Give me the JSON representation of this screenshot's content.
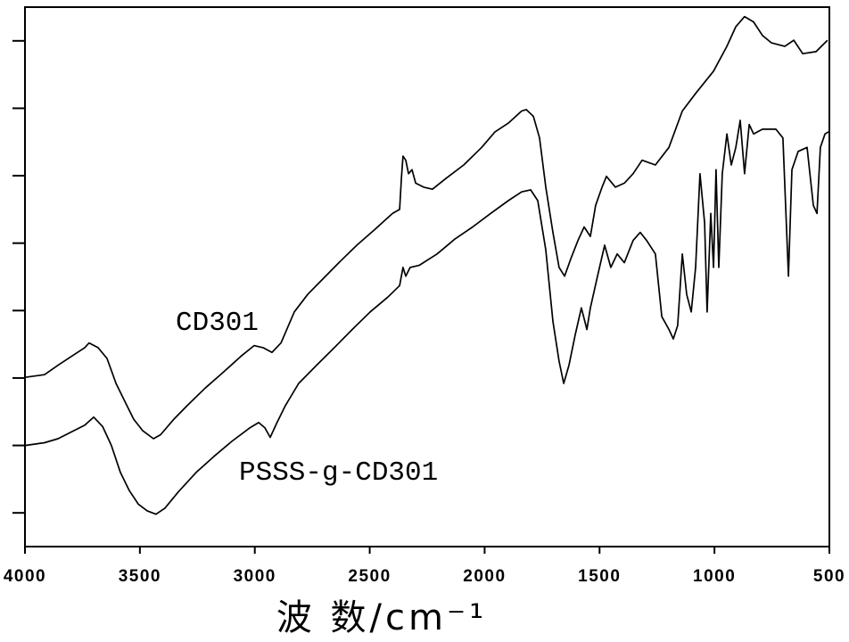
{
  "chart_data": {
    "type": "line",
    "title": "",
    "xlabel": "波 数/cm⁻¹",
    "ylabel": "",
    "xlim": [
      4000,
      500
    ],
    "ylim": [
      0.5,
      8.5
    ],
    "xticks": [
      4000,
      3500,
      3000,
      2500,
      2000,
      1500,
      1000,
      500
    ],
    "yticks": [
      1,
      2,
      3,
      4,
      5,
      6,
      7,
      8
    ],
    "ytick_labels_shown": false,
    "grid": false,
    "legend": "none",
    "line_color": "#000000",
    "series": [
      {
        "name": "CD301",
        "points": [
          [
            4000,
            3.01
          ],
          [
            3915,
            3.05
          ],
          [
            3856,
            3.19
          ],
          [
            3798,
            3.32
          ],
          [
            3740,
            3.45
          ],
          [
            3721,
            3.52
          ],
          [
            3682,
            3.45
          ],
          [
            3643,
            3.29
          ],
          [
            3604,
            2.92
          ],
          [
            3565,
            2.65
          ],
          [
            3527,
            2.39
          ],
          [
            3488,
            2.22
          ],
          [
            3441,
            2.1
          ],
          [
            3410,
            2.16
          ],
          [
            3352,
            2.39
          ],
          [
            3294,
            2.59
          ],
          [
            3216,
            2.85
          ],
          [
            3139,
            3.08
          ],
          [
            3061,
            3.32
          ],
          [
            3003,
            3.48
          ],
          [
            2964,
            3.45
          ],
          [
            2925,
            3.38
          ],
          [
            2886,
            3.52
          ],
          [
            2828,
            3.98
          ],
          [
            2770,
            4.24
          ],
          [
            2712,
            4.44
          ],
          [
            2634,
            4.71
          ],
          [
            2556,
            4.97
          ],
          [
            2479,
            5.2
          ],
          [
            2401,
            5.44
          ],
          [
            2370,
            5.5
          ],
          [
            2362,
            5.96
          ],
          [
            2355,
            6.29
          ],
          [
            2343,
            6.23
          ],
          [
            2331,
            6.03
          ],
          [
            2316,
            6.09
          ],
          [
            2300,
            5.89
          ],
          [
            2265,
            5.83
          ],
          [
            2227,
            5.8
          ],
          [
            2168,
            5.96
          ],
          [
            2091,
            6.16
          ],
          [
            2013,
            6.42
          ],
          [
            1955,
            6.65
          ],
          [
            1897,
            6.78
          ],
          [
            1839,
            6.96
          ],
          [
            1819,
            6.98
          ],
          [
            1788,
            6.88
          ],
          [
            1761,
            6.56
          ],
          [
            1734,
            5.83
          ],
          [
            1703,
            5.16
          ],
          [
            1676,
            4.64
          ],
          [
            1652,
            4.51
          ],
          [
            1625,
            4.77
          ],
          [
            1594,
            5.04
          ],
          [
            1567,
            5.24
          ],
          [
            1540,
            5.1
          ],
          [
            1517,
            5.56
          ],
          [
            1489,
            5.83
          ],
          [
            1470,
            5.99
          ],
          [
            1431,
            5.83
          ],
          [
            1392,
            5.89
          ],
          [
            1354,
            6.03
          ],
          [
            1315,
            6.23
          ],
          [
            1257,
            6.16
          ],
          [
            1198,
            6.42
          ],
          [
            1140,
            6.96
          ],
          [
            1082,
            7.22
          ],
          [
            1004,
            7.55
          ],
          [
            946,
            7.92
          ],
          [
            907,
            8.21
          ],
          [
            869,
            8.36
          ],
          [
            830,
            8.28
          ],
          [
            791,
            8.08
          ],
          [
            752,
            7.97
          ],
          [
            694,
            7.92
          ],
          [
            655,
            8.01
          ],
          [
            616,
            7.81
          ],
          [
            558,
            7.84
          ],
          [
            508,
            8.01
          ]
        ]
      },
      {
        "name": "PSSS-g-CD301",
        "points": [
          [
            4000,
            2.0
          ],
          [
            3915,
            2.04
          ],
          [
            3856,
            2.1
          ],
          [
            3798,
            2.2
          ],
          [
            3740,
            2.3
          ],
          [
            3701,
            2.42
          ],
          [
            3662,
            2.28
          ],
          [
            3624,
            2.0
          ],
          [
            3585,
            1.6
          ],
          [
            3546,
            1.33
          ],
          [
            3507,
            1.13
          ],
          [
            3468,
            1.03
          ],
          [
            3430,
            0.98
          ],
          [
            3391,
            1.07
          ],
          [
            3333,
            1.31
          ],
          [
            3255,
            1.6
          ],
          [
            3177,
            1.84
          ],
          [
            3100,
            2.06
          ],
          [
            3022,
            2.26
          ],
          [
            2983,
            2.34
          ],
          [
            2956,
            2.26
          ],
          [
            2933,
            2.12
          ],
          [
            2906,
            2.32
          ],
          [
            2867,
            2.59
          ],
          [
            2809,
            2.92
          ],
          [
            2731,
            3.19
          ],
          [
            2654,
            3.45
          ],
          [
            2576,
            3.72
          ],
          [
            2498,
            3.98
          ],
          [
            2421,
            4.2
          ],
          [
            2370,
            4.37
          ],
          [
            2355,
            4.64
          ],
          [
            2343,
            4.51
          ],
          [
            2324,
            4.64
          ],
          [
            2285,
            4.67
          ],
          [
            2207,
            4.84
          ],
          [
            2130,
            5.06
          ],
          [
            2052,
            5.24
          ],
          [
            1974,
            5.44
          ],
          [
            1897,
            5.63
          ],
          [
            1839,
            5.76
          ],
          [
            1800,
            5.79
          ],
          [
            1769,
            5.63
          ],
          [
            1734,
            4.9
          ],
          [
            1703,
            3.84
          ],
          [
            1676,
            3.25
          ],
          [
            1656,
            2.92
          ],
          [
            1633,
            3.19
          ],
          [
            1606,
            3.64
          ],
          [
            1579,
            4.04
          ],
          [
            1555,
            3.72
          ],
          [
            1540,
            4.04
          ],
          [
            1509,
            4.51
          ],
          [
            1478,
            4.97
          ],
          [
            1451,
            4.64
          ],
          [
            1423,
            4.84
          ],
          [
            1392,
            4.71
          ],
          [
            1354,
            5.04
          ],
          [
            1323,
            5.16
          ],
          [
            1295,
            5.04
          ],
          [
            1257,
            4.84
          ],
          [
            1229,
            3.91
          ],
          [
            1198,
            3.72
          ],
          [
            1179,
            3.58
          ],
          [
            1160,
            3.78
          ],
          [
            1140,
            4.84
          ],
          [
            1121,
            4.24
          ],
          [
            1101,
            3.98
          ],
          [
            1082,
            4.64
          ],
          [
            1063,
            6.03
          ],
          [
            1043,
            5.3
          ],
          [
            1032,
            3.98
          ],
          [
            1016,
            5.44
          ],
          [
            1004,
            4.64
          ],
          [
            993,
            6.09
          ],
          [
            981,
            4.64
          ],
          [
            966,
            6.03
          ],
          [
            946,
            6.62
          ],
          [
            927,
            6.16
          ],
          [
            907,
            6.42
          ],
          [
            888,
            6.82
          ],
          [
            869,
            6.03
          ],
          [
            849,
            6.76
          ],
          [
            830,
            6.62
          ],
          [
            791,
            6.69
          ],
          [
            733,
            6.69
          ],
          [
            702,
            6.56
          ],
          [
            678,
            4.51
          ],
          [
            663,
            6.09
          ],
          [
            636,
            6.36
          ],
          [
            597,
            6.42
          ],
          [
            570,
            5.56
          ],
          [
            554,
            5.44
          ],
          [
            539,
            6.42
          ],
          [
            519,
            6.62
          ],
          [
            504,
            6.65
          ]
        ]
      }
    ]
  }
}
